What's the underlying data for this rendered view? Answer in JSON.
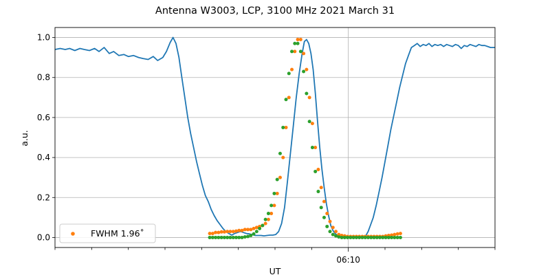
{
  "chart_data": {
    "type": "line",
    "title": "Antenna W3003, LCP, 3100 MHz 2021 March 31",
    "xlabel": "UT",
    "ylabel": "a.u.",
    "xlim": [
      -40,
      20
    ],
    "ylim": [
      -0.05,
      1.05
    ],
    "x_ticks": [
      {
        "value": 0,
        "label": "06:10"
      }
    ],
    "y_ticks": [
      0.0,
      0.2,
      0.4,
      0.6,
      0.8,
      1.0
    ],
    "grid": true,
    "legend_position": "lower-left",
    "legend": [
      {
        "label": "FWHM 1.96$^\\circ$",
        "display": "FWHM 1.96˚",
        "series": "orange-points"
      }
    ],
    "series": [
      {
        "key": "blue-line",
        "mark": "line",
        "color": "#1f77b4",
        "points": [
          [
            -40,
            0.94
          ],
          [
            -39.3,
            0.945
          ],
          [
            -38.6,
            0.94
          ],
          [
            -38,
            0.945
          ],
          [
            -37.3,
            0.935
          ],
          [
            -36.6,
            0.945
          ],
          [
            -36,
            0.94
          ],
          [
            -35.3,
            0.935
          ],
          [
            -34.6,
            0.945
          ],
          [
            -34,
            0.93
          ],
          [
            -33.3,
            0.95
          ],
          [
            -32.6,
            0.92
          ],
          [
            -32,
            0.93
          ],
          [
            -31.3,
            0.91
          ],
          [
            -30.6,
            0.915
          ],
          [
            -30,
            0.905
          ],
          [
            -29.3,
            0.91
          ],
          [
            -28.6,
            0.9
          ],
          [
            -28,
            0.895
          ],
          [
            -27.3,
            0.89
          ],
          [
            -26.6,
            0.905
          ],
          [
            -26,
            0.885
          ],
          [
            -25.3,
            0.9
          ],
          [
            -24.8,
            0.93
          ],
          [
            -24.3,
            0.975
          ],
          [
            -23.9,
            1.0
          ],
          [
            -23.5,
            0.97
          ],
          [
            -23.1,
            0.9
          ],
          [
            -22.7,
            0.8
          ],
          [
            -22.3,
            0.7
          ],
          [
            -21.9,
            0.6
          ],
          [
            -21.5,
            0.52
          ],
          [
            -21.1,
            0.45
          ],
          [
            -20.7,
            0.38
          ],
          [
            -20.3,
            0.32
          ],
          [
            -19.9,
            0.26
          ],
          [
            -19.5,
            0.21
          ],
          [
            -19.1,
            0.18
          ],
          [
            -18.7,
            0.14
          ],
          [
            -18.3,
            0.11
          ],
          [
            -17.9,
            0.085
          ],
          [
            -17.5,
            0.065
          ],
          [
            -17.1,
            0.045
          ],
          [
            -16.7,
            0.03
          ],
          [
            -16.3,
            0.02
          ],
          [
            -15.9,
            0.012
          ],
          [
            -15.5,
            0.02
          ],
          [
            -15.1,
            0.025
          ],
          [
            -14.7,
            0.03
          ],
          [
            -14.3,
            0.025
          ],
          [
            -13.9,
            0.02
          ],
          [
            -13.5,
            0.018
          ],
          [
            -13.1,
            0.015
          ],
          [
            -12.7,
            0.01
          ],
          [
            -12.3,
            0.01
          ],
          [
            -11.9,
            0.01
          ],
          [
            -11.5,
            0.008
          ],
          [
            -11.1,
            0.01
          ],
          [
            -10.7,
            0.012
          ],
          [
            -10.3,
            0.012
          ],
          [
            -9.9,
            0.015
          ],
          [
            -9.5,
            0.03
          ],
          [
            -9.1,
            0.07
          ],
          [
            -8.7,
            0.15
          ],
          [
            -8.3,
            0.28
          ],
          [
            -7.9,
            0.42
          ],
          [
            -7.5,
            0.56
          ],
          [
            -7.1,
            0.7
          ],
          [
            -6.7,
            0.82
          ],
          [
            -6.3,
            0.92
          ],
          [
            -6.0,
            0.98
          ],
          [
            -5.7,
            0.99
          ],
          [
            -5.4,
            0.97
          ],
          [
            -5.1,
            0.92
          ],
          [
            -4.8,
            0.84
          ],
          [
            -4.5,
            0.72
          ],
          [
            -4.2,
            0.58
          ],
          [
            -3.9,
            0.45
          ],
          [
            -3.6,
            0.34
          ],
          [
            -3.3,
            0.25
          ],
          [
            -3.0,
            0.17
          ],
          [
            -2.7,
            0.11
          ],
          [
            -2.4,
            0.06
          ],
          [
            -2.1,
            0.035
          ],
          [
            -1.8,
            0.02
          ],
          [
            -1.5,
            0.01
          ],
          [
            -1.1,
            0.005
          ],
          [
            -0.6,
            0.003
          ],
          [
            -0.1,
            0.003
          ],
          [
            0.4,
            0.003
          ],
          [
            0.9,
            0.003
          ],
          [
            1.4,
            0.003
          ],
          [
            1.9,
            0.005
          ],
          [
            2.4,
            0.01
          ],
          [
            2.7,
            0.03
          ],
          [
            3.0,
            0.06
          ],
          [
            3.4,
            0.1
          ],
          [
            3.8,
            0.16
          ],
          [
            4.2,
            0.23
          ],
          [
            4.6,
            0.3
          ],
          [
            5.0,
            0.38
          ],
          [
            5.4,
            0.46
          ],
          [
            5.8,
            0.54
          ],
          [
            6.2,
            0.61
          ],
          [
            6.6,
            0.68
          ],
          [
            7.0,
            0.75
          ],
          [
            7.4,
            0.81
          ],
          [
            7.8,
            0.87
          ],
          [
            8.2,
            0.91
          ],
          [
            8.6,
            0.95
          ],
          [
            9.0,
            0.96
          ],
          [
            9.4,
            0.97
          ],
          [
            9.8,
            0.955
          ],
          [
            10.2,
            0.965
          ],
          [
            10.6,
            0.96
          ],
          [
            11.0,
            0.97
          ],
          [
            11.4,
            0.955
          ],
          [
            11.8,
            0.965
          ],
          [
            12.2,
            0.96
          ],
          [
            12.6,
            0.965
          ],
          [
            13.0,
            0.955
          ],
          [
            13.4,
            0.965
          ],
          [
            13.8,
            0.96
          ],
          [
            14.2,
            0.955
          ],
          [
            14.6,
            0.965
          ],
          [
            15.0,
            0.96
          ],
          [
            15.4,
            0.945
          ],
          [
            15.8,
            0.96
          ],
          [
            16.2,
            0.955
          ],
          [
            16.6,
            0.965
          ],
          [
            17.0,
            0.96
          ],
          [
            17.4,
            0.955
          ],
          [
            17.8,
            0.965
          ],
          [
            18.2,
            0.96
          ],
          [
            18.6,
            0.96
          ],
          [
            19.0,
            0.955
          ],
          [
            19.4,
            0.95
          ],
          [
            20,
            0.95
          ]
        ]
      },
      {
        "key": "orange-points",
        "mark": "scatter",
        "color": "#ff7f0e",
        "points": [
          [
            -18.9,
            0.02
          ],
          [
            -18.5,
            0.02
          ],
          [
            -18.1,
            0.025
          ],
          [
            -17.7,
            0.025
          ],
          [
            -17.3,
            0.028
          ],
          [
            -16.9,
            0.028
          ],
          [
            -16.5,
            0.03
          ],
          [
            -16.1,
            0.03
          ],
          [
            -15.7,
            0.03
          ],
          [
            -15.3,
            0.032
          ],
          [
            -14.9,
            0.035
          ],
          [
            -14.5,
            0.035
          ],
          [
            -14.1,
            0.04
          ],
          [
            -13.7,
            0.04
          ],
          [
            -13.3,
            0.04
          ],
          [
            -12.9,
            0.045
          ],
          [
            -12.5,
            0.05
          ],
          [
            -12.1,
            0.055
          ],
          [
            -11.7,
            0.06
          ],
          [
            -11.3,
            0.07
          ],
          [
            -10.9,
            0.09
          ],
          [
            -10.5,
            0.12
          ],
          [
            -10.1,
            0.16
          ],
          [
            -9.7,
            0.22
          ],
          [
            -9.3,
            0.3
          ],
          [
            -8.9,
            0.4
          ],
          [
            -8.5,
            0.55
          ],
          [
            -8.1,
            0.7
          ],
          [
            -7.7,
            0.84
          ],
          [
            -7.3,
            0.93
          ],
          [
            -6.9,
            0.99
          ],
          [
            -6.5,
            0.99
          ],
          [
            -6.1,
            0.92
          ],
          [
            -5.7,
            0.84
          ],
          [
            -5.3,
            0.7
          ],
          [
            -4.9,
            0.57
          ],
          [
            -4.5,
            0.45
          ],
          [
            -4.1,
            0.34
          ],
          [
            -3.7,
            0.25
          ],
          [
            -3.3,
            0.18
          ],
          [
            -2.9,
            0.12
          ],
          [
            -2.5,
            0.08
          ],
          [
            -2.1,
            0.05
          ],
          [
            -1.7,
            0.03
          ],
          [
            -1.3,
            0.015
          ],
          [
            -0.9,
            0.01
          ],
          [
            -0.5,
            0.008
          ],
          [
            -0.1,
            0.005
          ],
          [
            0.3,
            0.005
          ],
          [
            0.7,
            0.005
          ],
          [
            1.1,
            0.005
          ],
          [
            1.5,
            0.005
          ],
          [
            1.9,
            0.005
          ],
          [
            2.3,
            0.005
          ],
          [
            2.7,
            0.005
          ],
          [
            3.1,
            0.005
          ],
          [
            3.5,
            0.005
          ],
          [
            3.9,
            0.005
          ],
          [
            4.3,
            0.005
          ],
          [
            4.7,
            0.005
          ],
          [
            5.1,
            0.008
          ],
          [
            5.5,
            0.01
          ],
          [
            5.9,
            0.012
          ],
          [
            6.3,
            0.015
          ],
          [
            6.7,
            0.018
          ],
          [
            7.1,
            0.02
          ]
        ]
      },
      {
        "key": "green-points",
        "mark": "scatter",
        "color": "#2ca02c",
        "points": [
          [
            -18.9,
            0.0
          ],
          [
            -18.5,
            0.0
          ],
          [
            -18.1,
            0.0
          ],
          [
            -17.7,
            0.0
          ],
          [
            -17.3,
            0.0
          ],
          [
            -16.9,
            0.0
          ],
          [
            -16.5,
            0.0
          ],
          [
            -16.1,
            0.0
          ],
          [
            -15.7,
            0.0
          ],
          [
            -15.3,
            0.0
          ],
          [
            -14.9,
            0.0
          ],
          [
            -14.5,
            0.0
          ],
          [
            -14.1,
            0.003
          ],
          [
            -13.7,
            0.005
          ],
          [
            -13.3,
            0.01
          ],
          [
            -12.9,
            0.018
          ],
          [
            -12.5,
            0.03
          ],
          [
            -12.1,
            0.045
          ],
          [
            -11.7,
            0.06
          ],
          [
            -11.3,
            0.09
          ],
          [
            -10.9,
            0.12
          ],
          [
            -10.5,
            0.16
          ],
          [
            -10.1,
            0.22
          ],
          [
            -9.7,
            0.29
          ],
          [
            -9.3,
            0.42
          ],
          [
            -8.9,
            0.55
          ],
          [
            -8.5,
            0.69
          ],
          [
            -8.1,
            0.82
          ],
          [
            -7.7,
            0.93
          ],
          [
            -7.3,
            0.97
          ],
          [
            -6.9,
            0.97
          ],
          [
            -6.5,
            0.93
          ],
          [
            -6.1,
            0.83
          ],
          [
            -5.7,
            0.72
          ],
          [
            -5.3,
            0.58
          ],
          [
            -4.9,
            0.45
          ],
          [
            -4.5,
            0.33
          ],
          [
            -4.1,
            0.23
          ],
          [
            -3.7,
            0.15
          ],
          [
            -3.3,
            0.1
          ],
          [
            -2.9,
            0.055
          ],
          [
            -2.5,
            0.03
          ],
          [
            -2.1,
            0.015
          ],
          [
            -1.7,
            0.008
          ],
          [
            -1.3,
            0.003
          ],
          [
            -0.9,
            0.0
          ],
          [
            -0.5,
            0.0
          ],
          [
            -0.1,
            0.0
          ],
          [
            0.3,
            0.0
          ],
          [
            0.7,
            0.0
          ],
          [
            1.1,
            0.0
          ],
          [
            1.5,
            0.0
          ],
          [
            1.9,
            0.0
          ],
          [
            2.3,
            0.0
          ],
          [
            2.7,
            0.0
          ],
          [
            3.1,
            0.0
          ],
          [
            3.5,
            0.0
          ],
          [
            3.9,
            0.0
          ],
          [
            4.3,
            0.0
          ],
          [
            4.7,
            0.0
          ],
          [
            5.1,
            0.0
          ],
          [
            5.5,
            0.0
          ],
          [
            5.9,
            0.0
          ],
          [
            6.3,
            0.0
          ],
          [
            6.7,
            0.0
          ],
          [
            7.1,
            0.0
          ]
        ]
      }
    ]
  }
}
